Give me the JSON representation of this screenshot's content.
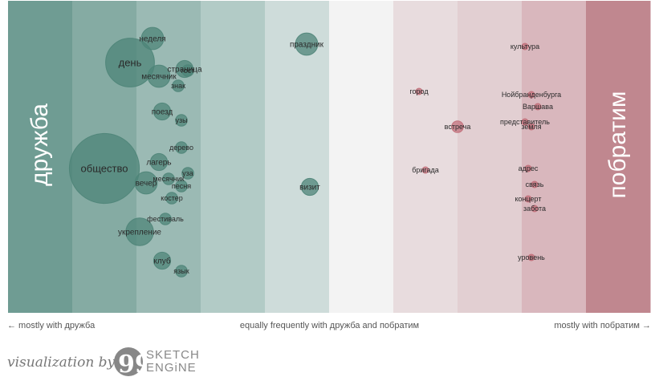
{
  "chart_data": {
    "type": "scatter",
    "title": "",
    "left_word": "дружба",
    "right_word": "побратим",
    "axis_labels": {
      "left": "← mostly with дружба",
      "middle": "equally frequently with дружба and побратим",
      "right": "mostly with побратим →"
    },
    "band_colors": [
      "#6f9c93",
      "#85aba3",
      "#9bbab4",
      "#b2cbc6",
      "#cedcda",
      "#f3f3f3",
      "#e8dcde",
      "#e2cfd2",
      "#d9b7bd",
      "#c0878f"
    ],
    "dot_colors": {
      "dружба_side": "#4e8478",
      "pobratim_side": "#c06a76"
    },
    "words": [
      {
        "word": "неделя",
        "x": -0.55,
        "row": 47,
        "size": 3
      },
      {
        "word": "день",
        "x": -0.62,
        "row": 77,
        "size": 8
      },
      {
        "word": "страница",
        "x": -0.45,
        "row": 85,
        "size": 2
      },
      {
        "word": "гост",
        "x": -0.44,
        "row": 87,
        "size": 1
      },
      {
        "word": "месячник",
        "x": -0.53,
        "row": 94,
        "size": 3
      },
      {
        "word": "знак",
        "x": -0.47,
        "row": 106,
        "size": 1
      },
      {
        "word": "праздник",
        "x": -0.07,
        "row": 54,
        "size": 3
      },
      {
        "word": "культура",
        "x": 0.61,
        "row": 57,
        "size": 0
      },
      {
        "word": "город",
        "x": 0.28,
        "row": 113,
        "size": 0
      },
      {
        "word": "Нойбранденбурга",
        "x": 0.63,
        "row": 117,
        "size": 0
      },
      {
        "word": "Варшава",
        "x": 0.65,
        "row": 132,
        "size": 0
      },
      {
        "word": "поезд",
        "x": -0.52,
        "row": 138,
        "size": 2
      },
      {
        "word": "узы",
        "x": -0.46,
        "row": 149,
        "size": 1
      },
      {
        "word": "представитель",
        "x": 0.61,
        "row": 151,
        "size": 0
      },
      {
        "word": "земля",
        "x": 0.63,
        "row": 157,
        "size": 0
      },
      {
        "word": "встреча",
        "x": 0.4,
        "row": 157,
        "size": 1
      },
      {
        "word": "дерево",
        "x": -0.46,
        "row": 183,
        "size": 1
      },
      {
        "word": "лагерь",
        "x": -0.53,
        "row": 201,
        "size": 2
      },
      {
        "word": "общество",
        "x": -0.7,
        "row": 209,
        "size": 12
      },
      {
        "word": "бригада",
        "x": 0.3,
        "row": 211,
        "size": 0
      },
      {
        "word": "адрес",
        "x": 0.62,
        "row": 209,
        "size": 0
      },
      {
        "word": "уза",
        "x": -0.44,
        "row": 215,
        "size": 1
      },
      {
        "word": "месячник",
        "x": -0.5,
        "row": 222,
        "size": 1
      },
      {
        "word": "вечер",
        "x": -0.57,
        "row": 227,
        "size": 3
      },
      {
        "word": "связь",
        "x": 0.64,
        "row": 229,
        "size": 0
      },
      {
        "word": "песня",
        "x": -0.46,
        "row": 231,
        "size": 1
      },
      {
        "word": "визит",
        "x": -0.06,
        "row": 232,
        "size": 2
      },
      {
        "word": "костер",
        "x": -0.49,
        "row": 246,
        "size": 1
      },
      {
        "word": "концерт",
        "x": 0.62,
        "row": 247,
        "size": 0
      },
      {
        "word": "забота",
        "x": 0.64,
        "row": 259,
        "size": 0
      },
      {
        "word": "фестиваль",
        "x": -0.51,
        "row": 272,
        "size": 1
      },
      {
        "word": "укрепление",
        "x": -0.59,
        "row": 288,
        "size": 4
      },
      {
        "word": "уровень",
        "x": 0.63,
        "row": 320,
        "size": 0
      },
      {
        "word": "клуб",
        "x": -0.52,
        "row": 324,
        "size": 2
      },
      {
        "word": "язык",
        "x": -0.46,
        "row": 337,
        "size": 1
      }
    ]
  },
  "footer": {
    "credit": "visualization by",
    "logo_text": "SKETCH\nENGiNE"
  }
}
